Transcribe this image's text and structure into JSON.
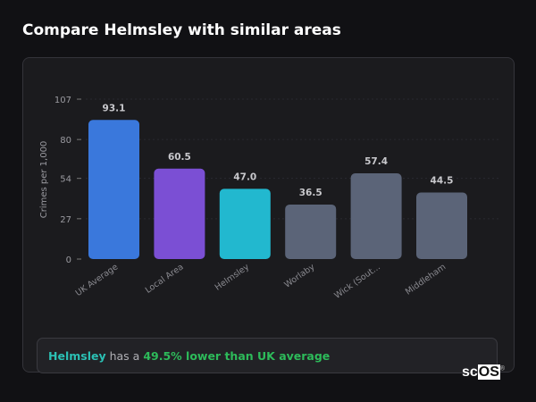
{
  "title": "Compare Helmsley with similar areas",
  "chart_data": {
    "type": "bar",
    "categories": [
      "UK Average",
      "Local Area",
      "Helmsley",
      "Worlaby",
      "Wick (Sout...",
      "Middleham"
    ],
    "values": [
      93.1,
      60.5,
      47.0,
      36.5,
      57.4,
      44.5
    ],
    "data_labels": [
      "93.1",
      "60.5",
      "47.0",
      "36.5",
      "57.4",
      "44.5"
    ],
    "colors": [
      "#3a78dc",
      "#7b4fd4",
      "#22b8cf",
      "#5b6478",
      "#5b6478",
      "#5b6478"
    ],
    "ylabel": "Crimes per 1,000",
    "xlabel": "",
    "ylim": [
      0,
      107
    ],
    "yticks": [
      0,
      27,
      54,
      80,
      107
    ],
    "grid": true
  },
  "summary": {
    "place": "Helmsley",
    "connector": "has a",
    "difference": "49.5% lower than UK average"
  },
  "logo": {
    "text_a": "sc",
    "text_b": "OS",
    "mark": "®"
  }
}
